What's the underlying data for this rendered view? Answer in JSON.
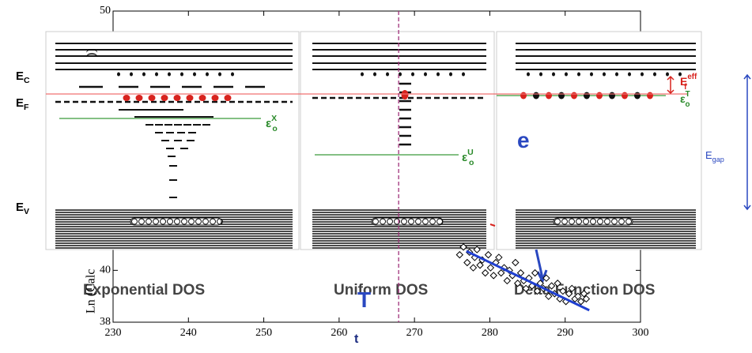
{
  "chart_data": {
    "type": "scatter",
    "ylabel": "Ln (Calc",
    "xlim": [
      230,
      300
    ],
    "ylim": [
      38,
      50
    ],
    "xticks": [
      230,
      240,
      250,
      260,
      270,
      280,
      290,
      300
    ],
    "yticks": [
      38,
      40,
      50
    ],
    "color": "#000000",
    "x": [
      276.0,
      276.5,
      277.0,
      277.3,
      277.8,
      278.0,
      278.3,
      278.7,
      279.0,
      279.4,
      279.8,
      280.1,
      280.5,
      280.8,
      281.2,
      281.5,
      281.9,
      282.3,
      282.6,
      283.0,
      283.4,
      283.7,
      284.1,
      284.5,
      284.8,
      285.2,
      285.6,
      286.0,
      286.3,
      286.7,
      287.1,
      287.5,
      287.8,
      288.2,
      288.6,
      289.0,
      289.3,
      289.7,
      290.1,
      290.5,
      290.9,
      291.3,
      291.7,
      292.1,
      292.5,
      292.8
    ],
    "y": [
      40.6,
      40.9,
      40.3,
      40.7,
      40.1,
      40.5,
      40.8,
      40.2,
      40.4,
      39.9,
      40.6,
      40.1,
      39.8,
      40.3,
      40.5,
      39.9,
      40.1,
      39.6,
      40.0,
      39.8,
      40.3,
      39.5,
      39.9,
      39.6,
      39.3,
      39.7,
      39.4,
      39.9,
      39.2,
      39.5,
      39.3,
      39.7,
      39.0,
      39.4,
      39.1,
      39.5,
      38.9,
      39.2,
      38.8,
      39.1,
      39.3,
      38.9,
      39.0,
      38.8,
      39.1,
      38.9
    ],
    "fit": {
      "x": [
        276.9,
        293.2
      ],
      "y": [
        40.74,
        38.46
      ],
      "color": "#1f3fd0"
    },
    "vline": 267.9,
    "vline_color": "#a0307a",
    "annotations": [
      {
        "text": "E",
        "sub": "C"
      },
      {
        "text": "E",
        "sub": "F"
      },
      {
        "text": "E",
        "sub": "V"
      },
      {
        "text": "ε",
        "sub": "o",
        "sup": "X"
      },
      {
        "text": "ε",
        "sub": "o",
        "sup": "U"
      },
      {
        "text": "E",
        "sub": "f",
        "sup": "eff"
      },
      {
        "text": "ε",
        "sub": "o",
        "sup": "T"
      },
      {
        "text": "E",
        "sub": "gap"
      },
      {
        "text": "Exponential DOS"
      },
      {
        "text": "Uniform DOS"
      },
      {
        "text": "Delta Function DOS"
      },
      {
        "text": "e"
      },
      {
        "text": "T"
      },
      {
        "text": "t"
      },
      {
        "text": "))"
      }
    ]
  }
}
